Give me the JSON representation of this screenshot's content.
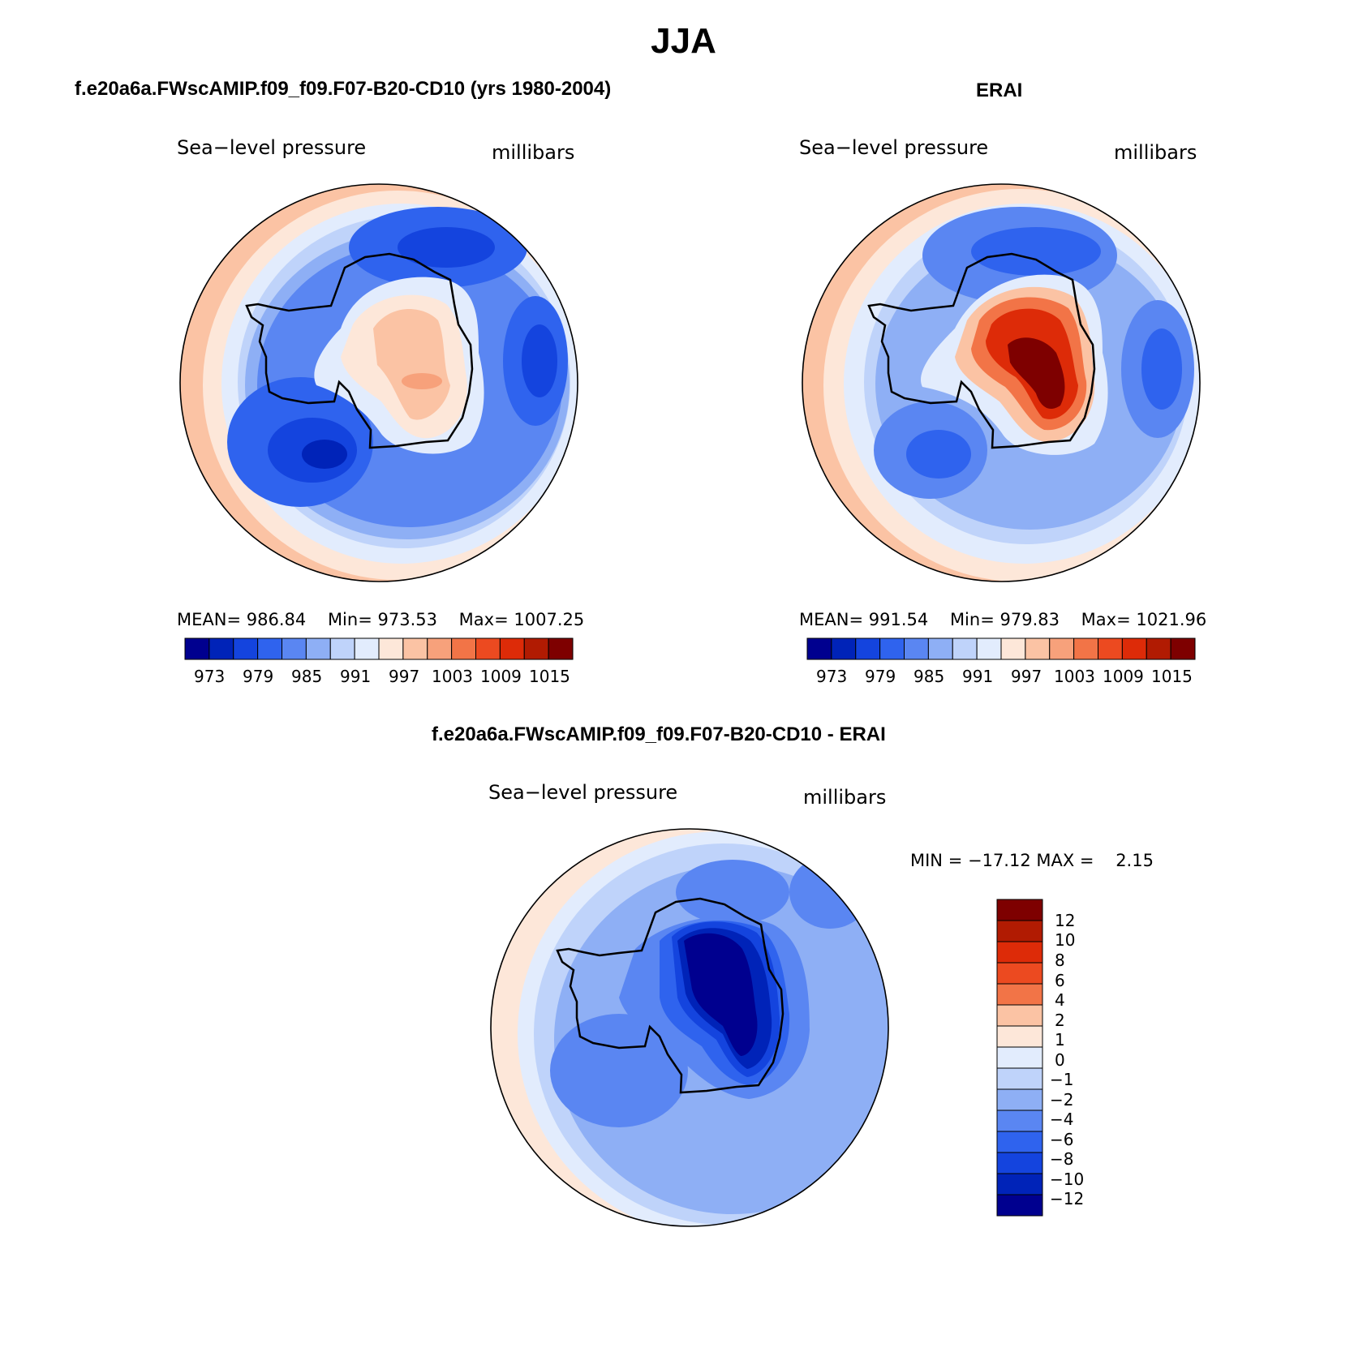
{
  "figure_title": "JJA",
  "colors": {
    "abs_palette": [
      "#00008f",
      "#0023b8",
      "#1444de",
      "#2f63ee",
      "#5a86f2",
      "#8eaff5",
      "#bfd3fa",
      "#e2ecfd",
      "#fde7d9",
      "#fbc3a4",
      "#f7a17b",
      "#f27447",
      "#ec4a20",
      "#dd2b08",
      "#b11b02",
      "#7e0000"
    ],
    "diff_palette": [
      "#00008f",
      "#0023b8",
      "#1444de",
      "#2f63ee",
      "#5a86f2",
      "#8eaff5",
      "#bfd3fa",
      "#e2ecfd",
      "#fde7d9",
      "#fbc3a4",
      "#f27447",
      "#ec4a20",
      "#dd2b08",
      "#b11b02",
      "#7e0000"
    ],
    "coastline": "#000000"
  },
  "chart_data": [
    {
      "type": "heatmap",
      "panel_id": "model",
      "title": "f.e20a6a.FWscAMIP.f09_f09.F07-B20-CD10 (yrs 1980-2004)",
      "variable": "Sea−level pressure",
      "units": "millibars",
      "projection": "south-polar-stereographic",
      "stats": {
        "mean": "986.84",
        "min": "973.53",
        "max": "1007.25"
      },
      "stats_labels": {
        "mean": "MEAN=",
        "min": "Min=",
        "max": "Max="
      },
      "colorbar": {
        "orientation": "horizontal",
        "bins": 16,
        "tick_labels": [
          "973",
          "979",
          "985",
          "991",
          "997",
          "1003",
          "1009",
          "1015"
        ]
      }
    },
    {
      "type": "heatmap",
      "panel_id": "obs",
      "title": "ERAI",
      "variable": "Sea−level pressure",
      "units": "millibars",
      "projection": "south-polar-stereographic",
      "stats": {
        "mean": "991.54",
        "min": "979.83",
        "max": "1021.96"
      },
      "stats_labels": {
        "mean": "MEAN=",
        "min": "Min=",
        "max": "Max="
      },
      "colorbar": {
        "orientation": "horizontal",
        "bins": 16,
        "tick_labels": [
          "973",
          "979",
          "985",
          "991",
          "997",
          "1003",
          "1009",
          "1015"
        ]
      }
    },
    {
      "type": "heatmap",
      "panel_id": "diff",
      "title": "f.e20a6a.FWscAMIP.f09_f09.F07-B20-CD10 - ERAI",
      "variable": "Sea−level pressure",
      "units": "millibars",
      "projection": "south-polar-stereographic",
      "stats": {
        "min": "−17.12",
        "max": "2.15"
      },
      "stats_text": "MIN = −17.12 MAX =    2.15",
      "colorbar": {
        "orientation": "vertical",
        "bins": 15,
        "tick_labels": [
          "12",
          "10",
          "8",
          "6",
          "4",
          "2",
          "1",
          "0",
          "−1",
          "−2",
          "−4",
          "−6",
          "−8",
          "−10",
          "−12"
        ]
      }
    }
  ]
}
